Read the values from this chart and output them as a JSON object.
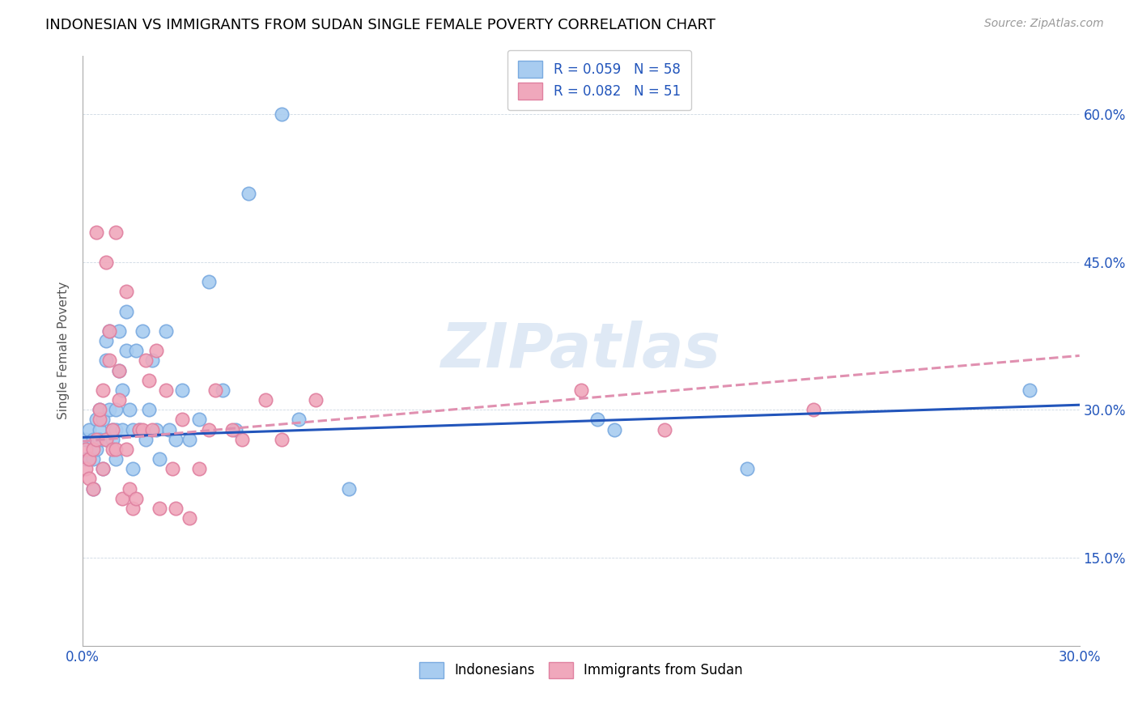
{
  "title": "INDONESIAN VS IMMIGRANTS FROM SUDAN SINGLE FEMALE POVERTY CORRELATION CHART",
  "source": "Source: ZipAtlas.com",
  "ylabel": "Single Female Poverty",
  "xlim": [
    0.0,
    0.3
  ],
  "ylim": [
    0.06,
    0.66
  ],
  "xtick_positions": [
    0.0,
    0.05,
    0.1,
    0.15,
    0.2,
    0.25,
    0.3
  ],
  "xtick_labels": [
    "0.0%",
    "",
    "",
    "",
    "",
    "",
    "30.0%"
  ],
  "ytick_positions": [
    0.15,
    0.3,
    0.45,
    0.6
  ],
  "ytick_labels": [
    "15.0%",
    "30.0%",
    "45.0%",
    "60.0%"
  ],
  "legend1_R": "0.059",
  "legend1_N": "58",
  "legend2_R": "0.082",
  "legend2_N": "51",
  "color_blue": "#a8ccf0",
  "color_pink": "#f0a8bc",
  "color_blue_edge": "#7aaae0",
  "color_pink_edge": "#e080a0",
  "color_blue_line": "#2255bb",
  "color_pink_line": "#e090b0",
  "color_legend_text": "#2255bb",
  "color_axis_text": "#2255bb",
  "watermark": "ZIPatlas",
  "indonesian_x": [
    0.001,
    0.001,
    0.002,
    0.002,
    0.003,
    0.003,
    0.003,
    0.004,
    0.004,
    0.005,
    0.005,
    0.005,
    0.006,
    0.006,
    0.007,
    0.007,
    0.007,
    0.008,
    0.008,
    0.009,
    0.009,
    0.01,
    0.01,
    0.01,
    0.011,
    0.011,
    0.012,
    0.012,
    0.013,
    0.013,
    0.014,
    0.015,
    0.015,
    0.016,
    0.017,
    0.018,
    0.019,
    0.02,
    0.021,
    0.022,
    0.023,
    0.025,
    0.026,
    0.028,
    0.03,
    0.032,
    0.035,
    0.038,
    0.042,
    0.046,
    0.05,
    0.06,
    0.065,
    0.08,
    0.155,
    0.16,
    0.2,
    0.285
  ],
  "indonesian_y": [
    0.27,
    0.25,
    0.28,
    0.25,
    0.27,
    0.25,
    0.22,
    0.29,
    0.26,
    0.28,
    0.3,
    0.27,
    0.29,
    0.24,
    0.37,
    0.35,
    0.27,
    0.38,
    0.3,
    0.28,
    0.27,
    0.3,
    0.28,
    0.25,
    0.34,
    0.38,
    0.32,
    0.28,
    0.36,
    0.4,
    0.3,
    0.28,
    0.24,
    0.36,
    0.28,
    0.38,
    0.27,
    0.3,
    0.35,
    0.28,
    0.25,
    0.38,
    0.28,
    0.27,
    0.32,
    0.27,
    0.29,
    0.43,
    0.32,
    0.28,
    0.52,
    0.6,
    0.29,
    0.22,
    0.29,
    0.28,
    0.24,
    0.32
  ],
  "sudan_x": [
    0.001,
    0.001,
    0.002,
    0.002,
    0.003,
    0.003,
    0.004,
    0.004,
    0.005,
    0.005,
    0.006,
    0.006,
    0.007,
    0.007,
    0.008,
    0.008,
    0.009,
    0.009,
    0.01,
    0.01,
    0.011,
    0.011,
    0.012,
    0.013,
    0.013,
    0.014,
    0.015,
    0.016,
    0.017,
    0.018,
    0.019,
    0.02,
    0.021,
    0.022,
    0.023,
    0.025,
    0.027,
    0.028,
    0.03,
    0.032,
    0.035,
    0.038,
    0.04,
    0.045,
    0.048,
    0.055,
    0.06,
    0.07,
    0.15,
    0.175,
    0.22
  ],
  "sudan_y": [
    0.26,
    0.24,
    0.25,
    0.23,
    0.26,
    0.22,
    0.48,
    0.27,
    0.29,
    0.3,
    0.32,
    0.24,
    0.27,
    0.45,
    0.35,
    0.38,
    0.28,
    0.26,
    0.26,
    0.48,
    0.31,
    0.34,
    0.21,
    0.26,
    0.42,
    0.22,
    0.2,
    0.21,
    0.28,
    0.28,
    0.35,
    0.33,
    0.28,
    0.36,
    0.2,
    0.32,
    0.24,
    0.2,
    0.29,
    0.19,
    0.24,
    0.28,
    0.32,
    0.28,
    0.27,
    0.31,
    0.27,
    0.31,
    0.32,
    0.28,
    0.3
  ]
}
